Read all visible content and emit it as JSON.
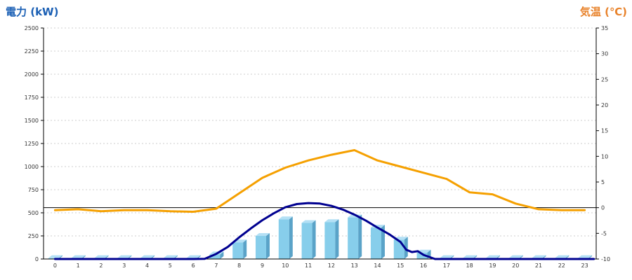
{
  "chart_data": {
    "type": "bar",
    "left_axis": {
      "title": "電力 (kW)",
      "min": 0,
      "max": 2500,
      "ticks": [
        "0",
        "250",
        "500",
        "750",
        "1000",
        "1250",
        "1500",
        "1750",
        "2000",
        "2250",
        "2500"
      ]
    },
    "right_axis": {
      "title": "気温 (℃)",
      "min": -10,
      "max": 35,
      "ticks": [
        "-10",
        "-5",
        "0",
        "5",
        "10",
        "15",
        "20",
        "25",
        "30",
        "35"
      ]
    },
    "categories": [
      "0",
      "1",
      "2",
      "3",
      "4",
      "5",
      "6",
      "7",
      "8",
      "9",
      "10",
      "11",
      "12",
      "13",
      "14",
      "15",
      "16",
      "17",
      "18",
      "19",
      "20",
      "21",
      "22",
      "23"
    ],
    "series": [
      {
        "kind": "bar",
        "axis": "left",
        "values": [
          10,
          10,
          10,
          10,
          10,
          10,
          10,
          50,
          180,
          250,
          430,
          390,
          400,
          450,
          340,
          210,
          70,
          10,
          10,
          10,
          10,
          10,
          10,
          10
        ]
      },
      {
        "kind": "line",
        "axis": "left",
        "x": [
          0,
          1,
          2,
          3,
          4,
          5,
          6,
          6.5,
          7,
          7.5,
          8,
          8.5,
          9,
          9.5,
          10,
          10.5,
          11,
          11.5,
          12,
          12.5,
          13,
          13.5,
          14,
          14.5,
          15,
          15.25,
          15.5,
          15.75,
          16,
          16.5,
          17,
          18,
          19,
          20,
          21,
          22,
          23,
          23.4
        ],
        "values": [
          0,
          0,
          0,
          0,
          0,
          0,
          0,
          2,
          55,
          130,
          235,
          330,
          420,
          495,
          560,
          595,
          605,
          600,
          575,
          535,
          480,
          415,
          340,
          270,
          185,
          100,
          75,
          85,
          45,
          0,
          0,
          0,
          0,
          0,
          0,
          0,
          0,
          0
        ]
      },
      {
        "kind": "line",
        "axis": "right",
        "x": [
          0,
          1,
          2,
          3,
          4,
          5,
          6,
          7,
          8,
          9,
          10,
          11,
          12,
          13,
          14,
          15,
          16,
          17,
          18,
          19,
          20,
          21,
          22,
          23
        ],
        "values": [
          -0.5,
          -0.3,
          -0.7,
          -0.5,
          -0.5,
          -0.7,
          -0.8,
          -0.2,
          2.8,
          5.8,
          7.8,
          9.2,
          10.3,
          11.2,
          9.2,
          8.0,
          6.8,
          5.6,
          3.0,
          2.6,
          0.8,
          -0.3,
          -0.5,
          -0.5
        ]
      }
    ],
    "reference_line": {
      "axis": "right",
      "value": 0
    },
    "grid": true
  },
  "colors": {
    "left_title": "#1a5fb4",
    "right_title": "#e8822a",
    "bar_front": "#87ceeb",
    "bar_side": "#5aa3c8",
    "bar_top": "#b4e0f5",
    "power_line": "#000090",
    "temp_line": "#f5a000",
    "grid": "#cccccc",
    "axis": "#000000"
  }
}
